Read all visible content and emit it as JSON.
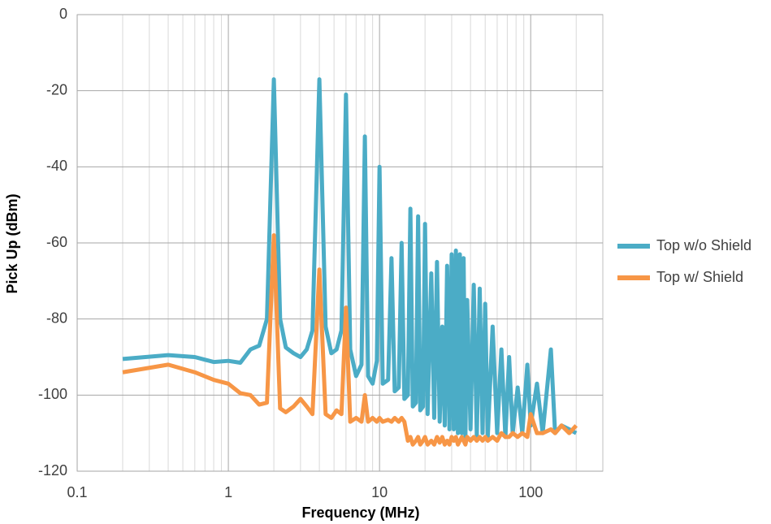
{
  "chart_data": {
    "type": "line",
    "x_label": "Frequency (MHz)",
    "y_label": "Pick Up (dBm)",
    "x_log": true,
    "grid": true,
    "minor_grid": true,
    "legend": "right",
    "xlim": [
      0.1,
      300
    ],
    "xticks": [
      0.1,
      1,
      10,
      100
    ],
    "ylim": [
      -120,
      0
    ],
    "yticks": [
      -120,
      -100,
      -80,
      -60,
      -40,
      -20,
      0
    ],
    "x": [
      0.2,
      0.4,
      0.6,
      0.8,
      1,
      1.2,
      1.4,
      1.6,
      1.8,
      2,
      2.2,
      2.4,
      2.7,
      3,
      3.3,
      3.6,
      4,
      4.4,
      4.8,
      5.2,
      5.6,
      6,
      6.4,
      7,
      7.6,
      8,
      8.4,
      9,
      9.6,
      10,
      10.5,
      11.4,
      12,
      12.6,
      13.4,
      14,
      14.6,
      15.4,
      16,
      16.6,
      17.4,
      18,
      18.6,
      19.4,
      20,
      20.8,
      22,
      23,
      24,
      25,
      26,
      27,
      28,
      29,
      30,
      31,
      32,
      33,
      34,
      35,
      36,
      37,
      38,
      40,
      42,
      44,
      46,
      48,
      50,
      52,
      56,
      60,
      64,
      68,
      72,
      76,
      82,
      88,
      95,
      100,
      110,
      120,
      136,
      145,
      160,
      180,
      200
    ],
    "series": [
      {
        "name": "Top w/o Shield",
        "color": "#4bacc6",
        "values": [
          -90.5,
          -89.5,
          -90,
          -91.3,
          -91,
          -91.5,
          -88,
          -87,
          -80,
          -17,
          -80,
          -87.5,
          -89,
          -90,
          -88,
          -83,
          -17,
          -82,
          -89,
          -88,
          -83,
          -21,
          -88,
          -95,
          -92,
          -32,
          -95,
          -97,
          -91,
          -40,
          -97,
          -96,
          -64,
          -99,
          -98,
          -60,
          -101,
          -100,
          -51,
          -103,
          -102,
          -53,
          -104,
          -103,
          -55,
          -105,
          -68,
          -106,
          -65,
          -107,
          -82,
          -108,
          -66,
          -109,
          -63,
          -109,
          -62,
          -110,
          -63,
          -110,
          -64,
          -111,
          -75,
          -109,
          -71,
          -111,
          -72,
          -110,
          -76,
          -111,
          -82,
          -110,
          -88,
          -111,
          -90,
          -110,
          -98,
          -110,
          -92,
          -108,
          -97,
          -110,
          -88,
          -110,
          -108,
          -109,
          -110
        ]
      },
      {
        "name": "Top w/ Shield",
        "color": "#f79646",
        "values": [
          -94,
          -92,
          -94,
          -96,
          -97,
          -99.5,
          -100,
          -102.5,
          -102,
          -58,
          -103.5,
          -104.5,
          -103,
          -101,
          -103,
          -105,
          -67,
          -105,
          -106,
          -104,
          -105,
          -77,
          -107,
          -106,
          -107,
          -100,
          -107,
          -106,
          -107,
          -106,
          -107,
          -106.5,
          -107,
          -106,
          -107,
          -106,
          -107,
          -112,
          -111,
          -113,
          -112,
          -111,
          -113,
          -112,
          -111,
          -113,
          -112,
          -113,
          -111,
          -112.5,
          -111,
          -113,
          -112,
          -113,
          -111,
          -112,
          -111,
          -113,
          -112,
          -111,
          -112,
          -113,
          -111,
          -112,
          -111,
          -112,
          -111,
          -112,
          -111,
          -112,
          -111,
          -112,
          -110,
          -111,
          -111,
          -110,
          -111,
          -110,
          -111,
          -105,
          -110,
          -110,
          -109,
          -110,
          -108,
          -110,
          -108
        ]
      }
    ]
  }
}
